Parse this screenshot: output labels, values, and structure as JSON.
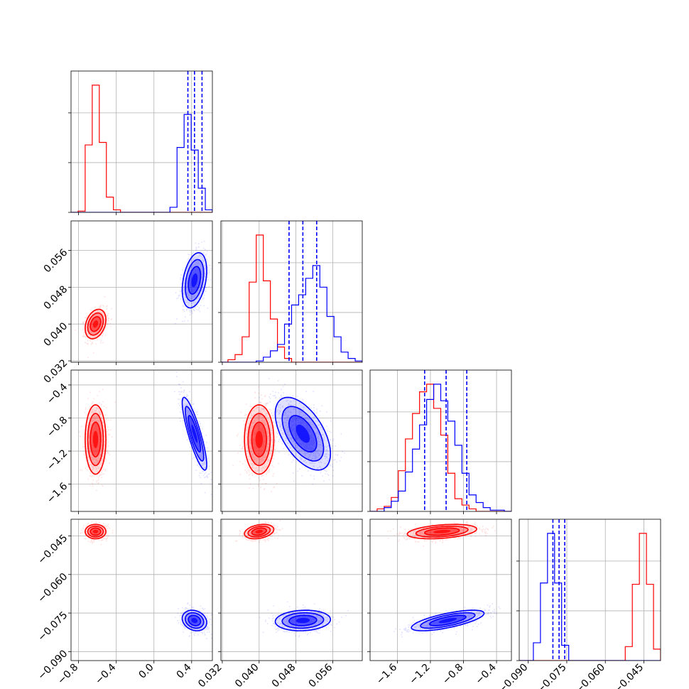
{
  "figure": {
    "type": "corner_plot",
    "description_visible_text_only": true
  },
  "colors": {
    "series_red": "#ff0000",
    "series_blue": "#0000ff",
    "grid": "#b0b0b0",
    "axes": "#000000",
    "quantile_line": "#0000ff"
  },
  "chart_data": {
    "type": "corner",
    "parameters": 4,
    "grid": true,
    "axes": [
      {
        "range": [
          -0.88,
          0.62
        ],
        "ticks": [
          -0.8,
          -0.4,
          0.0,
          0.4
        ],
        "tick_labels": [
          "−0.8",
          "−0.4",
          "0.0",
          "0.4"
        ]
      },
      {
        "range": [
          0.0317,
          0.0624
        ],
        "ticks": [
          0.032,
          0.04,
          0.048,
          0.056
        ],
        "tick_labels": [
          "0.032",
          "0.040",
          "0.048",
          "0.056"
        ]
      },
      {
        "range": [
          -1.93,
          -0.22
        ],
        "ticks": [
          -1.6,
          -1.2,
          -0.8,
          -0.4
        ],
        "tick_labels": [
          "−1.6",
          "−1.2",
          "−0.8",
          "−0.4"
        ]
      },
      {
        "range": [
          -0.0935,
          -0.0385
        ],
        "ticks": [
          -0.09,
          -0.075,
          -0.06,
          -0.045
        ],
        "tick_labels": [
          "−0.090",
          "−0.075",
          "−0.060",
          "−0.045"
        ]
      }
    ],
    "series": [
      {
        "color": "#ff0000",
        "means": [
          -0.62,
          0.04,
          -1.06,
          -0.0433
        ],
        "stds": [
          0.055,
          0.0016,
          0.21,
          0.0014
        ],
        "correlations": {
          "1-0": 0.3,
          "2-0": 0.0,
          "2-1": 0.0,
          "3-0": 0.0,
          "3-1": 0.3,
          "3-2": 0.35
        },
        "histograms": [
          {
            "range": [
              -0.88,
              0.62
            ],
            "bins": 20,
            "counts": [
              0,
              0.01,
              0.53,
              1.0,
              0.55,
              0.12,
              0.02,
              0,
              0,
              0,
              0,
              0,
              0,
              0,
              0,
              0,
              0,
              0,
              0,
              0
            ]
          },
          {
            "range": [
              0.0317,
              0.0624
            ],
            "bins": 20,
            "counts": [
              0,
              0.02,
              0.06,
              0.2,
              0.63,
              1.0,
              0.64,
              0.34,
              0.12,
              0.03,
              0,
              0,
              0,
              0,
              0,
              0,
              0,
              0,
              0,
              0
            ]
          },
          {
            "range": [
              -1.93,
              -0.22
            ],
            "bins": 20,
            "counts": [
              0,
              0.02,
              0.04,
              0.11,
              0.32,
              0.57,
              0.77,
              0.94,
              1.0,
              0.81,
              0.6,
              0.3,
              0.1,
              0.05,
              0.02,
              0,
              0,
              0,
              0,
              0
            ]
          },
          {
            "range": [
              -0.0935,
              -0.0385
            ],
            "bins": 20,
            "counts": [
              0,
              0,
              0,
              0,
              0,
              0,
              0,
              0,
              0,
              0,
              0,
              0,
              0,
              0,
              0,
              0.11,
              0.6,
              1.0,
              0.6,
              0.09
            ]
          }
        ]
      },
      {
        "color": "#0000ff",
        "means": [
          0.43,
          0.0495,
          -0.99,
          -0.0779
        ],
        "stds": [
          0.065,
          0.003,
          0.22,
          0.002
        ],
        "correlations": {
          "1-0": 0.35,
          "2-0": -0.85,
          "2-1": -0.55,
          "3-0": -0.2,
          "3-1": 0.1,
          "3-2": 0.7
        },
        "quantiles": [
          [
            0.36,
            0.43,
            0.51
          ],
          [
            0.0465,
            0.0495,
            0.0525
          ],
          [
            -1.27,
            -1.01,
            -0.76
          ],
          [
            -0.0804,
            -0.078,
            -0.0758
          ]
        ],
        "histograms": [
          {
            "range": [
              -0.88,
              0.62
            ],
            "bins": 20,
            "counts": [
              0,
              0,
              0,
              0,
              0,
              0,
              0,
              0,
              0,
              0,
              0,
              0,
              0,
              0,
              0.04,
              0.51,
              0.77,
              0.49,
              0.19,
              0.02
            ]
          },
          {
            "range": [
              0.0317,
              0.0624
            ],
            "bins": 20,
            "counts": [
              0,
              0,
              0,
              0,
              0,
              0.01,
              0.04,
              0.09,
              0.14,
              0.3,
              0.45,
              0.53,
              0.66,
              0.76,
              0.59,
              0.36,
              0.2,
              0.08,
              0.03,
              0.01
            ]
          },
          {
            "range": [
              -1.93,
              -0.22
            ],
            "bins": 20,
            "counts": [
              0,
              0,
              0.03,
              0.08,
              0.16,
              0.31,
              0.49,
              0.68,
              0.88,
              1.0,
              0.87,
              0.71,
              0.52,
              0.3,
              0.13,
              0.07,
              0.03,
              0.01,
              0.01,
              0
            ]
          },
          {
            "range": [
              -0.0935,
              -0.0385
            ],
            "bins": 20,
            "counts": [
              0,
              0,
              0.14,
              0.61,
              1.0,
              0.61,
              0.12,
              0,
              0,
              0,
              0,
              0,
              0,
              0,
              0,
              0,
              0,
              0,
              0,
              0
            ]
          }
        ]
      }
    ]
  }
}
